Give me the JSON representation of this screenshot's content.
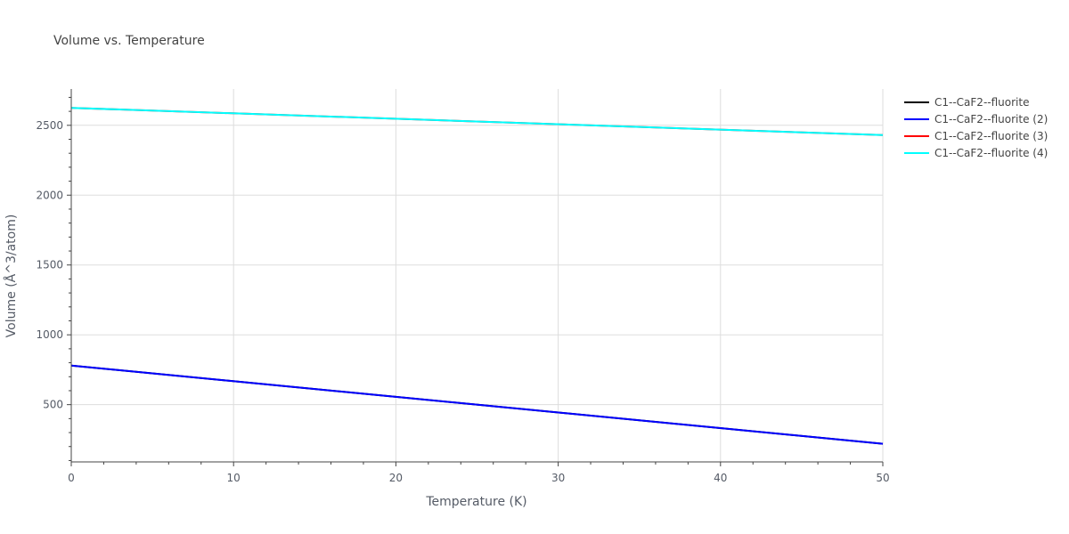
{
  "chart_data": {
    "type": "line",
    "title": "Volume vs. Temperature",
    "xlabel": "Temperature (K)",
    "ylabel": "Volume (Å^3/atom)",
    "xlim": [
      0,
      50
    ],
    "ylim": [
      90,
      2760
    ],
    "xticks": [
      0,
      10,
      20,
      30,
      40,
      50
    ],
    "yticks": [
      500,
      1000,
      1500,
      2000,
      2500
    ],
    "grid": true,
    "legend_position": "top-right",
    "series": [
      {
        "name": "C1--CaF2--fluorite",
        "color": "#000000",
        "x": [
          0,
          50
        ],
        "y": [
          780,
          220
        ]
      },
      {
        "name": "C1--CaF2--fluorite (2)",
        "color": "#0000ff",
        "x": [
          0,
          50
        ],
        "y": [
          780,
          220
        ]
      },
      {
        "name": "C1--CaF2--fluorite (3)",
        "color": "#ff0000",
        "x": [
          0,
          50
        ],
        "y": [
          2625,
          2430
        ]
      },
      {
        "name": "C1--CaF2--fluorite (4)",
        "color": "#00ffff",
        "x": [
          0,
          50
        ],
        "y": [
          2625,
          2430
        ]
      }
    ]
  }
}
